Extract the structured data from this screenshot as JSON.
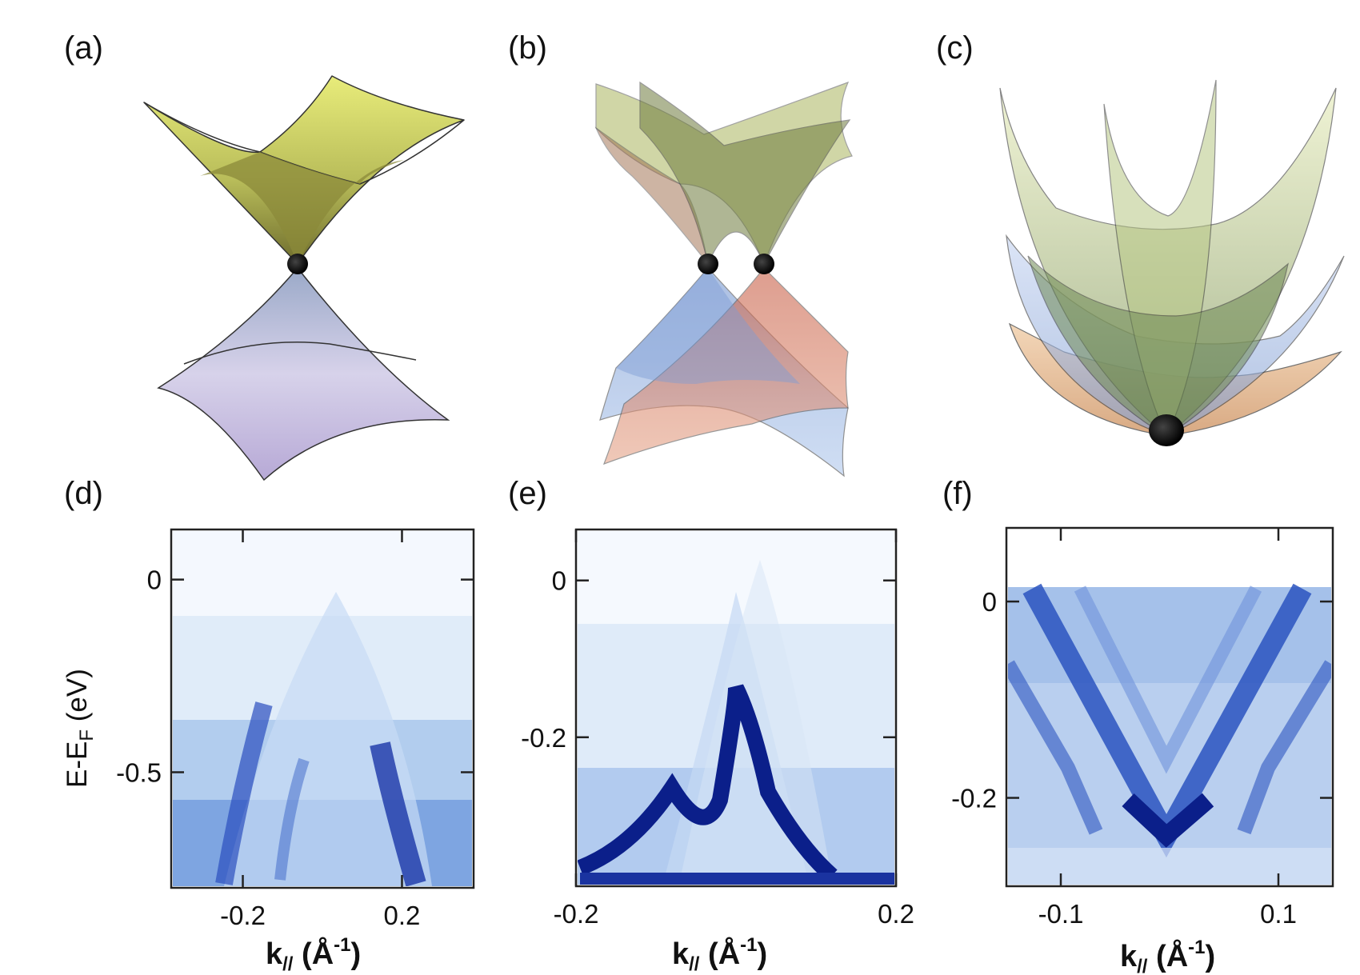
{
  "panels": {
    "a": {
      "label": "(a)"
    },
    "b": {
      "label": "(b)"
    },
    "c": {
      "label": "(c)"
    },
    "d": {
      "label": "(d)",
      "ylabel_main": "E-E",
      "ylabel_sub": "F",
      "ylabel_unit": " (eV)",
      "xticks": [
        "-0.2",
        "0.2"
      ],
      "yticks": [
        "0",
        "-0.5"
      ]
    },
    "e": {
      "label": "(e)",
      "xticks": [
        "-0.2",
        "0.2"
      ],
      "yticks": [
        "0",
        "-0.2"
      ]
    },
    "f": {
      "label": "(f)",
      "xticks": [
        "-0.1",
        "0.1"
      ],
      "yticks": [
        "0",
        "-0.2"
      ]
    }
  },
  "xlabel": {
    "main": "k",
    "sub": "//",
    "unit_open": " (Å",
    "sup": "-1",
    "unit_close": ")"
  },
  "colors": {
    "upper_cone": "#d9de6e",
    "lower_cone": "#b4a8d8",
    "orange_cone": "#d98a60",
    "blue_cone": "#8fb0e0",
    "green_cone": "#a9bf70",
    "arpes_dark": "#0b1f8a",
    "arpes_light": "#f3f8fe",
    "dirac_point": "#000000"
  },
  "chart_data": [
    {
      "type": "heatmap",
      "panel": "d",
      "x_range": [
        -0.38,
        0.38
      ],
      "y_range": [
        -0.8,
        0.13
      ],
      "xticks": [
        -0.2,
        0.2
      ],
      "yticks": [
        0,
        -0.5
      ],
      "features": [
        {
          "kind": "band-branch",
          "from": [
            -0.18,
            -0.8
          ],
          "to": [
            0.0,
            -0.05
          ]
        },
        {
          "kind": "band-branch",
          "from": [
            0.2,
            -0.8
          ],
          "to": [
            0.0,
            -0.05
          ]
        }
      ]
    },
    {
      "type": "heatmap",
      "panel": "e",
      "x_range": [
        -0.2,
        0.2
      ],
      "y_range": [
        -0.39,
        0.065
      ],
      "xticks": [
        -0.2,
        0.2
      ],
      "yticks": [
        0,
        -0.2
      ],
      "features": [
        {
          "kind": "band-apex",
          "at": [
            -0.08,
            -0.27
          ]
        },
        {
          "kind": "band-apex",
          "at": [
            0.0,
            -0.18
          ]
        }
      ]
    },
    {
      "type": "heatmap",
      "panel": "f",
      "x_range": [
        -0.15,
        0.15
      ],
      "y_range": [
        -0.29,
        0.075
      ],
      "xticks": [
        -0.1,
        0.1
      ],
      "yticks": [
        0,
        -0.2
      ],
      "features": [
        {
          "kind": "V-band",
          "vertex": [
            0.0,
            -0.24
          ],
          "top_left": [
            -0.1,
            0.0
          ],
          "top_right": [
            0.1,
            0.0
          ]
        },
        {
          "kind": "V-band",
          "vertex": [
            0.0,
            -0.3
          ],
          "top_left": [
            -0.14,
            0.0
          ],
          "top_right": [
            0.14,
            0.0
          ]
        }
      ]
    }
  ]
}
